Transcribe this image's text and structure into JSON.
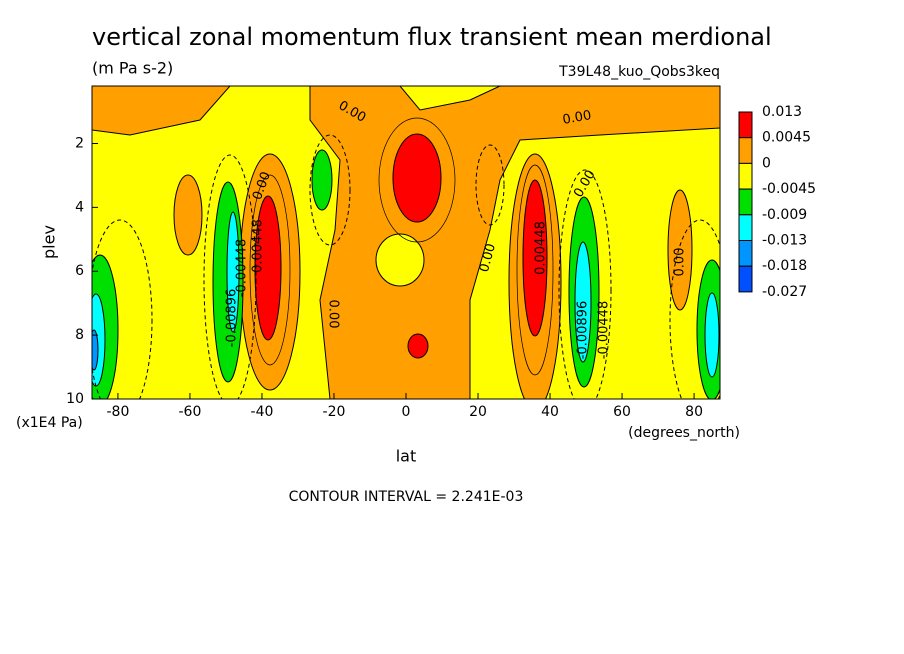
{
  "chart_data": {
    "type": "contour",
    "title": "vertical zonal momentum flux transient mean merdional",
    "subtitle": "(m Pa s-2)",
    "dataset": "T39L48_kuo_Qobs3keq",
    "x_label": "lat",
    "x_units": "(degrees_north)",
    "y_label": "plev",
    "y_units": "(x1E4 Pa)",
    "xlim": [
      -87.2,
      87.2
    ],
    "xticks": [
      -80,
      -60,
      -40,
      -20,
      0,
      20,
      40,
      60,
      80
    ],
    "ylim": [
      10,
      0.2
    ],
    "yticks": [
      2,
      4,
      6,
      8,
      10
    ],
    "colorbar": {
      "levels": [
        0.013,
        0.0045,
        0,
        -0.0045,
        -0.009,
        -0.013,
        -0.018,
        -0.027
      ],
      "colors": [
        "#ff0000",
        "#ffa000",
        "#ffff00",
        "#00e000",
        "#00ffff",
        "#0096ff",
        "#0050ff"
      ]
    },
    "contour_labels": [
      "0.00",
      "0.00",
      "0.00",
      "0.00",
      "0.00",
      "0.00",
      "0.00",
      "0.00448",
      "0.00448",
      "-0.00896",
      "-0.00448",
      "-0.00896",
      "-0.00448"
    ],
    "footer": "CONTOUR INTERVAL = 2.241E-03"
  }
}
